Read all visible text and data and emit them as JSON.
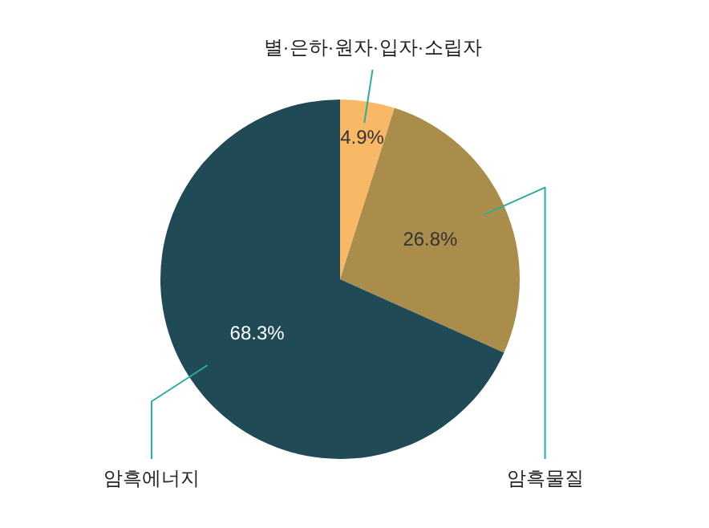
{
  "chart_data": {
    "type": "pie",
    "categories": [
      "별·은하·원자·입자·소립자",
      "암흑물질",
      "암흑에너지"
    ],
    "values": [
      4.9,
      26.8,
      68.3
    ],
    "colors": [
      "#f8b865",
      "#ab8d4b",
      "#1f4a56"
    ],
    "value_labels": [
      "4.9%",
      "26.8%",
      "68.3%"
    ]
  }
}
